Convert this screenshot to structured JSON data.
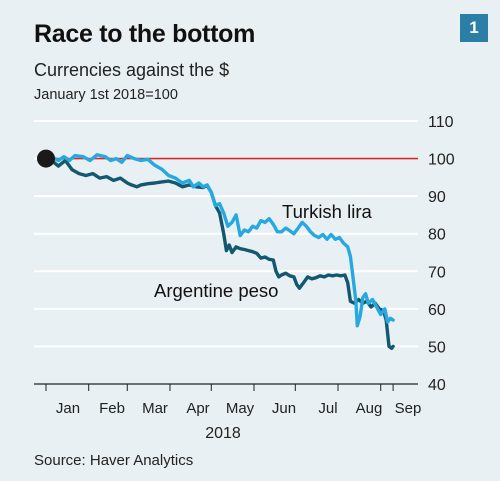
{
  "header": {
    "title": "Race to the bottom",
    "subtitle": "Currencies against the $",
    "note": "January 1st 2018=100",
    "badge": "1"
  },
  "source": "Source: Haver Analytics",
  "colors": {
    "background": "#e8f0f3",
    "grid": "#ffffff",
    "reference": "#d9262e",
    "turkish": "#27a9df",
    "argentine": "#14586f",
    "marker": "#1a1a1a"
  },
  "chart_data": {
    "type": "line",
    "title": "Race to the bottom",
    "subtitle": "Currencies against the $",
    "note": "January 1st 2018=100",
    "xlabel": "2018",
    "ylabel": "",
    "ylim": [
      40,
      110
    ],
    "yticks": [
      "110",
      "100",
      "90",
      "80",
      "70",
      "60",
      "50",
      "40"
    ],
    "x_tick_labels": [
      "Jan",
      "Feb",
      "Mar",
      "Apr",
      "May",
      "Jun",
      "Jul",
      "Aug",
      "Sep"
    ],
    "x_tick_days": [
      15,
      46,
      74,
      105,
      135,
      166,
      196,
      227,
      258
    ],
    "reference_line": 100,
    "grid": true,
    "series": [
      {
        "name": "Turkish lira",
        "points": [
          [
            1,
            100
          ],
          [
            5,
            100.5
          ],
          [
            10,
            99.5
          ],
          [
            14,
            100.5
          ],
          [
            18,
            99.5
          ],
          [
            22,
            100.8
          ],
          [
            28,
            100.5
          ],
          [
            33,
            99.5
          ],
          [
            38,
            101
          ],
          [
            44,
            100.5
          ],
          [
            48,
            99.5
          ],
          [
            52,
            100
          ],
          [
            56,
            99
          ],
          [
            60,
            100.8
          ],
          [
            65,
            100
          ],
          [
            70,
            99.5
          ],
          [
            75,
            99.8
          ],
          [
            80,
            98.2
          ],
          [
            85,
            97.2
          ],
          [
            90,
            95.5
          ],
          [
            95,
            94.8
          ],
          [
            100,
            93.5
          ],
          [
            105,
            94.2
          ],
          [
            108,
            92.5
          ],
          [
            112,
            93.5
          ],
          [
            115,
            92.5
          ],
          [
            118,
            93
          ],
          [
            121,
            91
          ],
          [
            124,
            87.5
          ],
          [
            127,
            88
          ],
          [
            130,
            85.5
          ],
          [
            133,
            82
          ],
          [
            136,
            83
          ],
          [
            139,
            85
          ],
          [
            142,
            79.5
          ],
          [
            145,
            81
          ],
          [
            148,
            80.5
          ],
          [
            151,
            82
          ],
          [
            154,
            81.5
          ],
          [
            157,
            83.5
          ],
          [
            160,
            83
          ],
          [
            163,
            84
          ],
          [
            166,
            82.5
          ],
          [
            169,
            80.5
          ],
          [
            172,
            80.5
          ],
          [
            175,
            81.5
          ],
          [
            178,
            80.8
          ],
          [
            181,
            80
          ],
          [
            184,
            81.5
          ],
          [
            187,
            83
          ],
          [
            190,
            82
          ],
          [
            193,
            80.5
          ],
          [
            196,
            79.5
          ],
          [
            199,
            79
          ],
          [
            202,
            79.8
          ],
          [
            205,
            78.5
          ],
          [
            208,
            79.8
          ],
          [
            211,
            78.5
          ],
          [
            214,
            79
          ],
          [
            217,
            77.5
          ],
          [
            220,
            76.5
          ],
          [
            222,
            74
          ],
          [
            224,
            68
          ],
          [
            226,
            62
          ],
          [
            227,
            55.5
          ],
          [
            229,
            58
          ],
          [
            231,
            63
          ],
          [
            233,
            64
          ],
          [
            235,
            61.5
          ],
          [
            238,
            62.5
          ],
          [
            241,
            60.5
          ],
          [
            244,
            58.5
          ],
          [
            247,
            60
          ],
          [
            249,
            56.5
          ],
          [
            251,
            57.5
          ],
          [
            253,
            57
          ]
        ]
      },
      {
        "name": "Argentine peso",
        "points": [
          [
            1,
            100
          ],
          [
            5,
            99.5
          ],
          [
            10,
            98
          ],
          [
            15,
            99.5
          ],
          [
            20,
            97
          ],
          [
            25,
            96
          ],
          [
            30,
            95.5
          ],
          [
            35,
            96
          ],
          [
            40,
            94.8
          ],
          [
            45,
            95.2
          ],
          [
            50,
            94.2
          ],
          [
            55,
            94.8
          ],
          [
            60,
            93.5
          ],
          [
            63,
            93
          ],
          [
            67,
            92.5
          ],
          [
            70,
            93
          ],
          [
            75,
            93.3
          ],
          [
            80,
            93.5
          ],
          [
            85,
            93.8
          ],
          [
            90,
            94
          ],
          [
            95,
            93.5
          ],
          [
            100,
            92.5
          ],
          [
            105,
            93
          ],
          [
            110,
            92.5
          ],
          [
            115,
            92.3
          ],
          [
            118,
            92.8
          ],
          [
            121,
            91
          ],
          [
            124,
            87.5
          ],
          [
            127,
            85.5
          ],
          [
            130,
            80
          ],
          [
            132,
            75.5
          ],
          [
            134,
            77
          ],
          [
            136,
            75
          ],
          [
            139,
            76.5
          ],
          [
            142,
            76
          ],
          [
            145,
            75.8
          ],
          [
            148,
            75.5
          ],
          [
            151,
            75.2
          ],
          [
            154,
            74.8
          ],
          [
            157,
            73.5
          ],
          [
            160,
            73.8
          ],
          [
            163,
            73.2
          ],
          [
            166,
            73
          ],
          [
            168,
            70
          ],
          [
            170,
            68.5
          ],
          [
            172,
            69
          ],
          [
            175,
            69.5
          ],
          [
            178,
            68.8
          ],
          [
            181,
            68.5
          ],
          [
            183,
            66.5
          ],
          [
            185,
            65.5
          ],
          [
            188,
            67
          ],
          [
            191,
            68.5
          ],
          [
            194,
            68
          ],
          [
            197,
            68.3
          ],
          [
            200,
            68.8
          ],
          [
            203,
            68.5
          ],
          [
            206,
            69
          ],
          [
            209,
            68.8
          ],
          [
            212,
            69
          ],
          [
            215,
            68.8
          ],
          [
            218,
            69
          ],
          [
            220,
            67
          ],
          [
            222,
            62
          ],
          [
            225,
            61.5
          ],
          [
            228,
            62.5
          ],
          [
            231,
            61.5
          ],
          [
            234,
            62
          ],
          [
            237,
            60.5
          ],
          [
            240,
            61.5
          ],
          [
            243,
            60
          ],
          [
            246,
            59.5
          ],
          [
            248,
            57
          ],
          [
            250,
            50
          ],
          [
            252,
            49.5
          ],
          [
            253,
            50
          ]
        ]
      }
    ],
    "labels": {
      "turkish": "Turkish lira",
      "argentine": "Argentine peso"
    }
  }
}
